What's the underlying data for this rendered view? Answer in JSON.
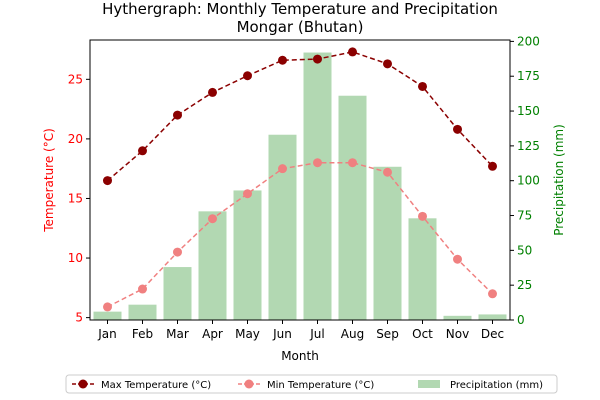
{
  "chart_data": {
    "type": "bar+line",
    "title": "Hythergraph: Monthly Temperature and Precipitation",
    "subtitle": "Mongar (Bhutan)",
    "xlabel": "Month",
    "ylabel_left": "Temperature (°C)",
    "ylabel_right": "Precipitation (mm)",
    "categories": [
      "Jan",
      "Feb",
      "Mar",
      "Apr",
      "May",
      "Jun",
      "Jul",
      "Aug",
      "Sep",
      "Oct",
      "Nov",
      "Dec"
    ],
    "ylim_left": [
      4.8,
      28.3
    ],
    "yticks_left": [
      5,
      10,
      15,
      20,
      25
    ],
    "ylim_right": [
      0,
      201
    ],
    "yticks_right": [
      0,
      25,
      50,
      75,
      100,
      125,
      150,
      175,
      200
    ],
    "series": [
      {
        "name": "Max Temperature (°C)",
        "kind": "line",
        "axis": "left",
        "color": "#8b0000",
        "values": [
          16.5,
          19.0,
          22.0,
          23.9,
          25.3,
          26.6,
          26.7,
          27.3,
          26.3,
          24.4,
          20.8,
          17.7
        ]
      },
      {
        "name": "Min Temperature (°C)",
        "kind": "line",
        "axis": "left",
        "color": "#f08080",
        "values": [
          5.9,
          7.4,
          10.5,
          13.3,
          15.4,
          17.5,
          18.0,
          18.0,
          17.2,
          13.5,
          9.9,
          7.0
        ]
      },
      {
        "name": "Precipitation (mm)",
        "kind": "bar",
        "axis": "right",
        "color": "#b2d8b2",
        "values": [
          6,
          11,
          38,
          78,
          93,
          133,
          192,
          161,
          110,
          73,
          3,
          4
        ]
      }
    ],
    "legend_position": "bottom-center",
    "left_axis_color": "#ff0000",
    "right_axis_color": "#008000",
    "grid": false
  }
}
